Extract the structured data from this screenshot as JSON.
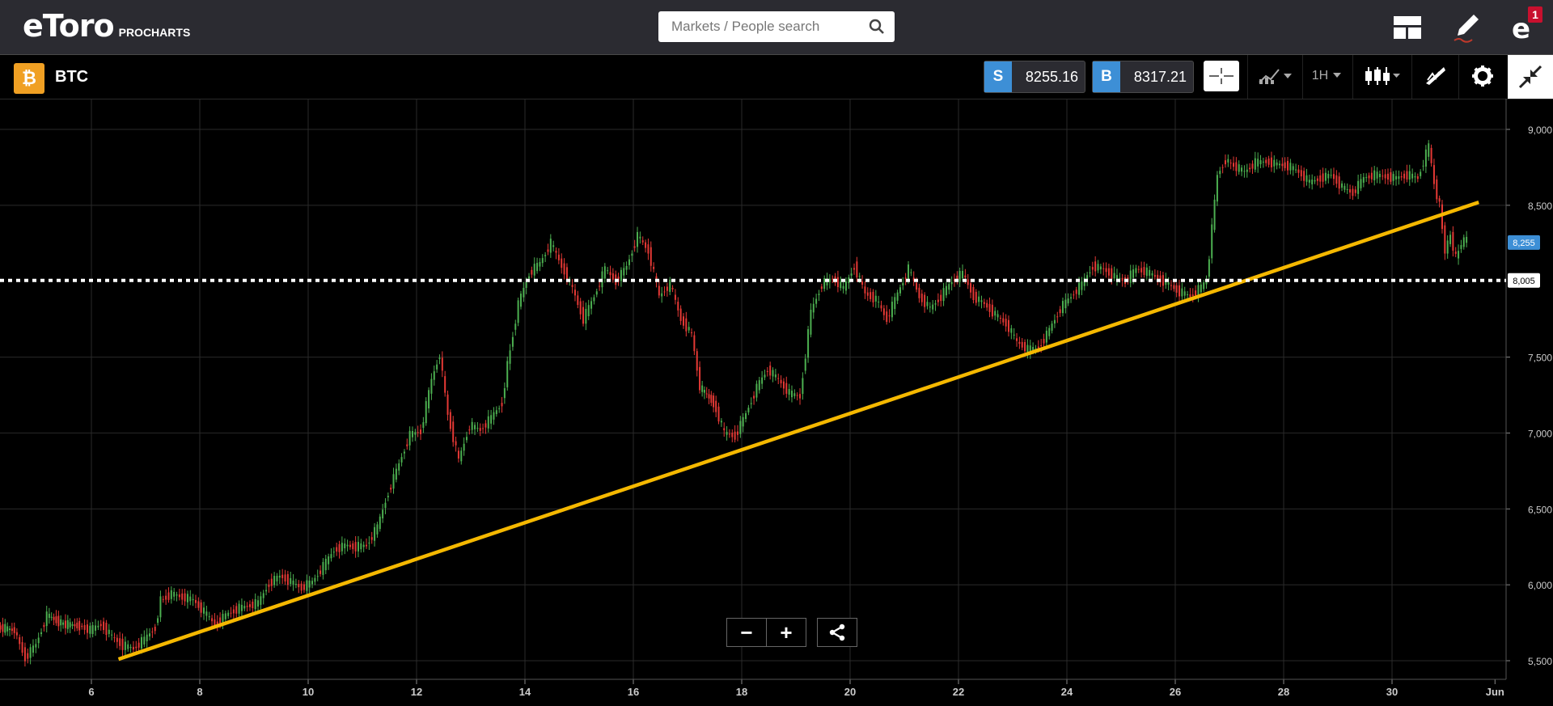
{
  "header": {
    "logo_text": "eToro",
    "logo_sub": "PROCHARTS",
    "search_placeholder": "Markets / People search",
    "notification_count": "1",
    "icons": [
      "layout-icon",
      "edit-icon",
      "profile-icon"
    ]
  },
  "toolbar": {
    "asset_symbol": "BTC",
    "asset_icon": "bitcoin-icon",
    "sell_label": "S",
    "sell_price": "8255.16",
    "buy_label": "B",
    "buy_price": "8317.21",
    "timeframe": "1H",
    "icons": [
      "crosshair-icon",
      "indicators-icon",
      "candlestick-icon",
      "draw-icon",
      "gear-icon",
      "collapse-icon"
    ]
  },
  "chart_data": {
    "type": "line",
    "title": "",
    "xlabel": "",
    "ylabel": "",
    "x_ticks": [
      "6",
      "8",
      "10",
      "12",
      "14",
      "16",
      "18",
      "20",
      "22",
      "24",
      "26",
      "28",
      "30",
      "Jun"
    ],
    "y_ticks": [
      "9,000",
      "8,500",
      "7,500",
      "7,000",
      "6,500",
      "6,000",
      "5,500"
    ],
    "ylim": [
      5400,
      9100
    ],
    "xlim": [
      4.3,
      31.9
    ],
    "current_price_label": "8,255",
    "current_price": 8255,
    "level_label": "8,005",
    "level_value": 8005,
    "trendline": {
      "from": [
        6.5,
        5510
      ],
      "to": [
        31.6,
        8520
      ],
      "color": "#f5b800"
    },
    "colors": {
      "up": "#4caf50",
      "down": "#e53935",
      "grid": "#2a2a2a",
      "price_tag": "#3d8fd6"
    },
    "series": [
      {
        "values": [
          [
            4.3,
            5720
          ],
          [
            4.6,
            5700
          ],
          [
            4.8,
            5520
          ],
          [
            5.0,
            5610
          ],
          [
            5.2,
            5800
          ],
          [
            5.5,
            5740
          ],
          [
            5.8,
            5730
          ],
          [
            6.0,
            5700
          ],
          [
            6.2,
            5740
          ],
          [
            6.4,
            5660
          ],
          [
            6.6,
            5600
          ],
          [
            6.8,
            5580
          ],
          [
            7.0,
            5640
          ],
          [
            7.2,
            5720
          ],
          [
            7.3,
            5900
          ],
          [
            7.5,
            5940
          ],
          [
            7.7,
            5920
          ],
          [
            7.9,
            5900
          ],
          [
            8.1,
            5820
          ],
          [
            8.3,
            5740
          ],
          [
            8.5,
            5800
          ],
          [
            8.7,
            5840
          ],
          [
            8.9,
            5860
          ],
          [
            9.1,
            5880
          ],
          [
            9.3,
            6010
          ],
          [
            9.5,
            6060
          ],
          [
            9.7,
            6020
          ],
          [
            9.9,
            5980
          ],
          [
            10.1,
            6020
          ],
          [
            10.3,
            6120
          ],
          [
            10.5,
            6230
          ],
          [
            10.7,
            6260
          ],
          [
            10.9,
            6250
          ],
          [
            11.1,
            6260
          ],
          [
            11.3,
            6380
          ],
          [
            11.5,
            6610
          ],
          [
            11.7,
            6800
          ],
          [
            11.9,
            6990
          ],
          [
            12.1,
            7010
          ],
          [
            12.3,
            7350
          ],
          [
            12.45,
            7520
          ],
          [
            12.6,
            7120
          ],
          [
            12.8,
            6820
          ],
          [
            13.0,
            7050
          ],
          [
            13.2,
            7020
          ],
          [
            13.4,
            7100
          ],
          [
            13.6,
            7200
          ],
          [
            13.7,
            7450
          ],
          [
            13.9,
            7850
          ],
          [
            14.1,
            8050
          ],
          [
            14.3,
            8120
          ],
          [
            14.5,
            8250
          ],
          [
            14.7,
            8100
          ],
          [
            14.9,
            7950
          ],
          [
            15.1,
            7750
          ],
          [
            15.3,
            7900
          ],
          [
            15.5,
            8080
          ],
          [
            15.7,
            8000
          ],
          [
            15.9,
            8100
          ],
          [
            16.1,
            8300
          ],
          [
            16.3,
            8200
          ],
          [
            16.5,
            7900
          ],
          [
            16.7,
            7980
          ],
          [
            16.9,
            7750
          ],
          [
            17.1,
            7650
          ],
          [
            17.25,
            7300
          ],
          [
            17.5,
            7200
          ],
          [
            17.7,
            7000
          ],
          [
            17.9,
            6980
          ],
          [
            18.1,
            7130
          ],
          [
            18.3,
            7300
          ],
          [
            18.5,
            7420
          ],
          [
            18.7,
            7350
          ],
          [
            18.9,
            7260
          ],
          [
            19.1,
            7240
          ],
          [
            19.3,
            7800
          ],
          [
            19.5,
            7980
          ],
          [
            19.7,
            8020
          ],
          [
            19.9,
            7950
          ],
          [
            20.1,
            8100
          ],
          [
            20.3,
            7920
          ],
          [
            20.5,
            7880
          ],
          [
            20.7,
            7750
          ],
          [
            20.9,
            7920
          ],
          [
            21.1,
            8080
          ],
          [
            21.3,
            7900
          ],
          [
            21.5,
            7820
          ],
          [
            21.7,
            7900
          ],
          [
            21.9,
            8000
          ],
          [
            22.1,
            8050
          ],
          [
            22.3,
            7900
          ],
          [
            22.5,
            7850
          ],
          [
            22.7,
            7780
          ],
          [
            22.9,
            7720
          ],
          [
            23.1,
            7600
          ],
          [
            23.3,
            7550
          ],
          [
            23.5,
            7560
          ],
          [
            23.7,
            7680
          ],
          [
            23.9,
            7820
          ],
          [
            24.1,
            7900
          ],
          [
            24.3,
            7980
          ],
          [
            24.5,
            8100
          ],
          [
            24.7,
            8080
          ],
          [
            24.9,
            8030
          ],
          [
            25.1,
            8000
          ],
          [
            25.3,
            8080
          ],
          [
            25.5,
            8060
          ],
          [
            25.7,
            8020
          ],
          [
            25.9,
            7980
          ],
          [
            26.1,
            7930
          ],
          [
            26.3,
            7900
          ],
          [
            26.5,
            7960
          ],
          [
            26.6,
            8000
          ],
          [
            26.8,
            8700
          ],
          [
            26.95,
            8800
          ],
          [
            27.1,
            8760
          ],
          [
            27.3,
            8720
          ],
          [
            27.5,
            8780
          ],
          [
            27.7,
            8790
          ],
          [
            27.9,
            8770
          ],
          [
            28.1,
            8760
          ],
          [
            28.3,
            8720
          ],
          [
            28.5,
            8650
          ],
          [
            28.7,
            8680
          ],
          [
            28.9,
            8700
          ],
          [
            29.1,
            8620
          ],
          [
            29.3,
            8580
          ],
          [
            29.5,
            8680
          ],
          [
            29.7,
            8700
          ],
          [
            29.9,
            8690
          ],
          [
            30.1,
            8680
          ],
          [
            30.3,
            8700
          ],
          [
            30.5,
            8680
          ],
          [
            30.7,
            8890
          ],
          [
            30.8,
            8640
          ],
          [
            30.9,
            8500
          ],
          [
            31.0,
            8200
          ],
          [
            31.1,
            8300
          ],
          [
            31.2,
            8150
          ],
          [
            31.3,
            8250
          ],
          [
            31.4,
            8280
          ]
        ]
      }
    ]
  }
}
